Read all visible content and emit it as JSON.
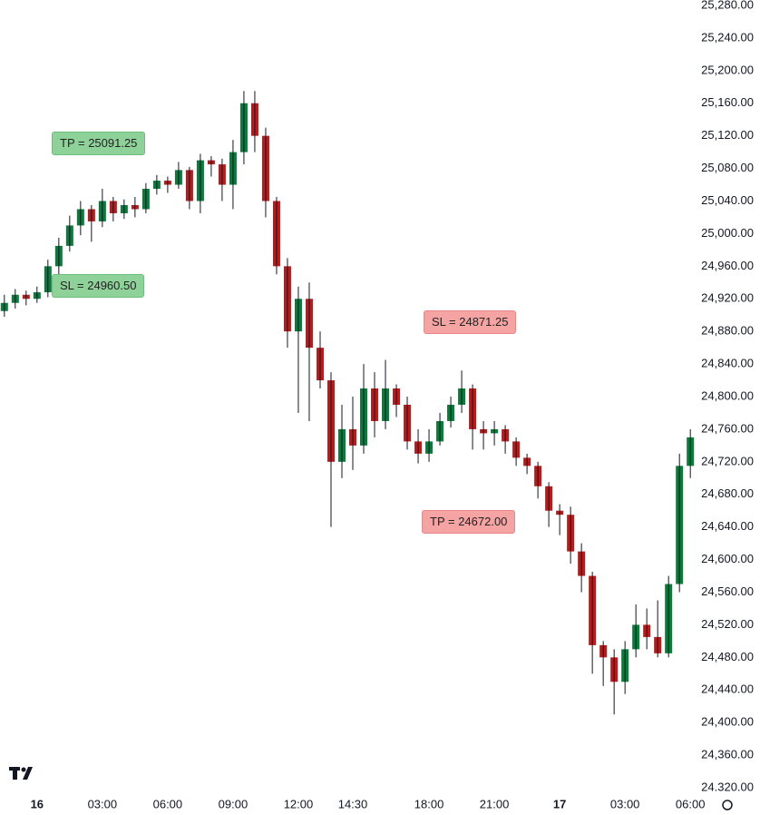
{
  "chart_data": {
    "type": "candlestick",
    "x": [
      -1.5,
      -1,
      -0.5,
      0,
      0.5,
      1,
      1.5,
      2,
      2.5,
      3,
      3.5,
      4,
      4.5,
      5,
      5.5,
      6,
      6.5,
      7,
      7.5,
      8,
      8.5,
      9,
      9.5,
      10,
      10.5,
      11,
      11.5,
      12,
      12.5,
      13,
      13.5,
      14,
      14.5,
      15,
      15.5,
      16,
      16.5,
      17,
      17.5,
      18,
      18.5,
      19,
      19.5,
      20,
      20.5,
      21,
      21.5,
      22,
      22.5,
      23,
      23.5,
      24,
      24.5,
      25,
      25.5,
      26,
      26.5,
      27,
      27.5,
      28,
      28.5,
      29,
      29.5,
      30
    ],
    "open": [
      24905,
      24915,
      24925,
      24920,
      24928,
      24960,
      24985,
      25010,
      25030,
      25015,
      25040,
      25025,
      25035,
      25030,
      25055,
      25065,
      25060,
      25078,
      25040,
      25090,
      25085,
      25060,
      25100,
      25160,
      25120,
      25040,
      24960,
      24880,
      24920,
      24860,
      24820,
      24720,
      24760,
      24740,
      24810,
      24770,
      24810,
      24790,
      24745,
      24730,
      24745,
      24770,
      24790,
      24810,
      24760,
      24755,
      24760,
      24745,
      24725,
      24715,
      24690,
      24660,
      24655,
      24610,
      24580,
      24495,
      24480,
      24450,
      24490,
      24520,
      24505,
      24485,
      24570,
      24715
    ],
    "high": [
      24925,
      24932,
      24930,
      24935,
      24968,
      24995,
      25022,
      25040,
      25035,
      25055,
      25045,
      25042,
      25045,
      25062,
      25072,
      25070,
      25088,
      25082,
      25098,
      25095,
      25092,
      25115,
      25175,
      25175,
      25130,
      25045,
      24970,
      24935,
      24940,
      24880,
      24830,
      24790,
      24800,
      24840,
      24830,
      24845,
      24815,
      24800,
      24760,
      24760,
      24780,
      24800,
      24832,
      24815,
      24770,
      24770,
      24765,
      24750,
      24730,
      24720,
      24695,
      24668,
      24665,
      24620,
      24585,
      24500,
      24490,
      24500,
      24545,
      24540,
      24550,
      24580,
      24730,
      24760
    ],
    "low": [
      24898,
      24908,
      24912,
      24915,
      24922,
      24950,
      24978,
      24998,
      24990,
      25008,
      25015,
      25018,
      25020,
      25025,
      25048,
      25050,
      25055,
      25030,
      25025,
      25070,
      25040,
      25030,
      25085,
      25100,
      25020,
      24950,
      24860,
      24780,
      24770,
      24810,
      24640,
      24700,
      24710,
      24730,
      24750,
      24760,
      24775,
      24735,
      24718,
      24720,
      24740,
      24762,
      24780,
      24735,
      24735,
      24740,
      24730,
      24715,
      24705,
      24675,
      24640,
      24630,
      24595,
      24560,
      24460,
      24445,
      24410,
      24435,
      24480,
      24490,
      24480,
      24480,
      24560,
      24700
    ],
    "close": [
      24915,
      24925,
      24920,
      24928,
      24960,
      24985,
      25010,
      25030,
      25015,
      25040,
      25025,
      25035,
      25030,
      25055,
      25065,
      25060,
      25078,
      25040,
      25090,
      25085,
      25060,
      25100,
      25160,
      25120,
      25040,
      24960,
      24880,
      24920,
      24860,
      24820,
      24720,
      24760,
      24740,
      24810,
      24770,
      24810,
      24790,
      24745,
      24730,
      24745,
      24770,
      24790,
      24810,
      24760,
      24755,
      24760,
      24745,
      24725,
      24715,
      24690,
      24660,
      24655,
      24610,
      24580,
      24495,
      24480,
      24450,
      24490,
      24520,
      24505,
      24485,
      24570,
      24715,
      24750
    ],
    "up_color": "#0b7a3b",
    "down_color": "#b71c1c",
    "xlim": [
      -1.7,
      30.2
    ],
    "ylim": [
      24320,
      25280
    ],
    "xticks": [
      {
        "value": 0,
        "label": "16"
      },
      {
        "value": 3,
        "label": "03:00"
      },
      {
        "value": 6,
        "label": "06:00"
      },
      {
        "value": 9,
        "label": "09:00"
      },
      {
        "value": 12,
        "label": "12:00"
      },
      {
        "value": 14.5,
        "label": "14:30"
      },
      {
        "value": 18,
        "label": "18:00"
      },
      {
        "value": 21,
        "label": "21:00"
      },
      {
        "value": 24,
        "label": "17"
      },
      {
        "value": 27,
        "label": "03:00"
      },
      {
        "value": 30,
        "label": "06:00"
      }
    ],
    "yticks": [
      {
        "value": 25280,
        "label": "25,280.00"
      },
      {
        "value": 25240,
        "label": "25,240.00"
      },
      {
        "value": 25200,
        "label": "25,200.00"
      },
      {
        "value": 25160,
        "label": "25,160.00"
      },
      {
        "value": 25120,
        "label": "25,120.00"
      },
      {
        "value": 25080,
        "label": "25,080.00"
      },
      {
        "value": 25040,
        "label": "25,040.00"
      },
      {
        "value": 25000,
        "label": "25,000.00"
      },
      {
        "value": 24960,
        "label": "24,960.00"
      },
      {
        "value": 24920,
        "label": "24,920.00"
      },
      {
        "value": 24880,
        "label": "24,880.00"
      },
      {
        "value": 24840,
        "label": "24,840.00"
      },
      {
        "value": 24800,
        "label": "24,800.00"
      },
      {
        "value": 24760,
        "label": "24,760.00"
      },
      {
        "value": 24720,
        "label": "24,720.00"
      },
      {
        "value": 24680,
        "label": "24,680.00"
      },
      {
        "value": 24640,
        "label": "24,640.00"
      },
      {
        "value": 24600,
        "label": "24,600.00"
      },
      {
        "value": 24560,
        "label": "24,560.00"
      },
      {
        "value": 24520,
        "label": "24,520.00"
      },
      {
        "value": 24480,
        "label": "24,480.00"
      },
      {
        "value": 24440,
        "label": "24,440.00"
      },
      {
        "value": 24400,
        "label": "24,400.00"
      },
      {
        "value": 24360,
        "label": "24,360.00"
      },
      {
        "value": 24320,
        "label": "24.320.00"
      }
    ],
    "annotations": [
      "TP = 25091.25",
      "SL = 24960.50",
      "SL = 24871.25",
      "TP = 24672.00"
    ]
  }
}
